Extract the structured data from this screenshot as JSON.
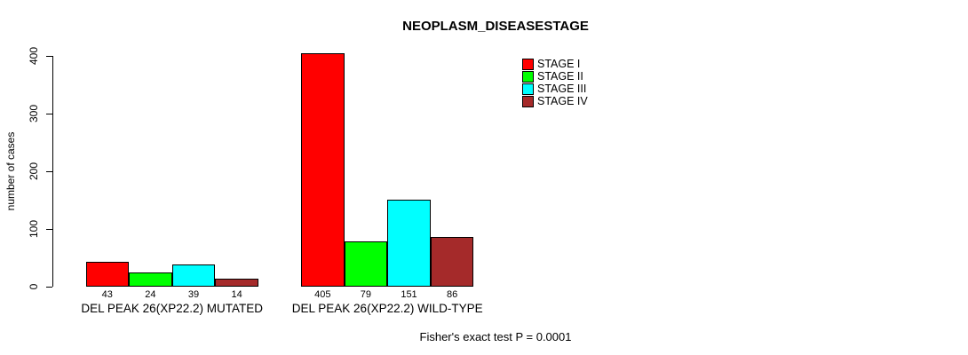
{
  "title": "NEOPLASM_DISEASESTAGE",
  "footer": "Fisher's exact test P = 0.0001",
  "chart_data": {
    "type": "bar",
    "title": "NEOPLASM_DISEASESTAGE",
    "xlabel": "",
    "ylabel": "number of cases",
    "ylim": [
      0,
      400
    ],
    "yticks": [
      0,
      100,
      200,
      300,
      400
    ],
    "grid": false,
    "legend_position": "top-right-inside",
    "categories": [
      "DEL PEAK 26(XP22.2) MUTATED",
      "DEL PEAK 26(XP22.2) WILD-TYPE"
    ],
    "series": [
      {
        "name": "STAGE I",
        "color": "#ff0000",
        "values": [
          43,
          405
        ]
      },
      {
        "name": "STAGE II",
        "color": "#00ff00",
        "values": [
          24,
          79
        ]
      },
      {
        "name": "STAGE III",
        "color": "#00ffff",
        "values": [
          39,
          151
        ]
      },
      {
        "name": "STAGE IV",
        "color": "#a52a2a",
        "values": [
          14,
          86
        ]
      }
    ],
    "legend": [
      {
        "label": "STAGE I",
        "color": "#ff0000"
      },
      {
        "label": "STAGE II",
        "color": "#00ff00"
      },
      {
        "label": "STAGE III",
        "color": "#00ffff"
      },
      {
        "label": "STAGE IV",
        "color": "#a52a2a"
      }
    ],
    "bar_value_labels": [
      [
        "43",
        "24",
        "39",
        "14"
      ],
      [
        "405",
        "79",
        "151",
        "86"
      ]
    ],
    "annotation": "Fisher's exact test P = 0.0001"
  },
  "colors": {
    "background": "#ffffff",
    "axis": "#000000",
    "text": "#000000"
  }
}
